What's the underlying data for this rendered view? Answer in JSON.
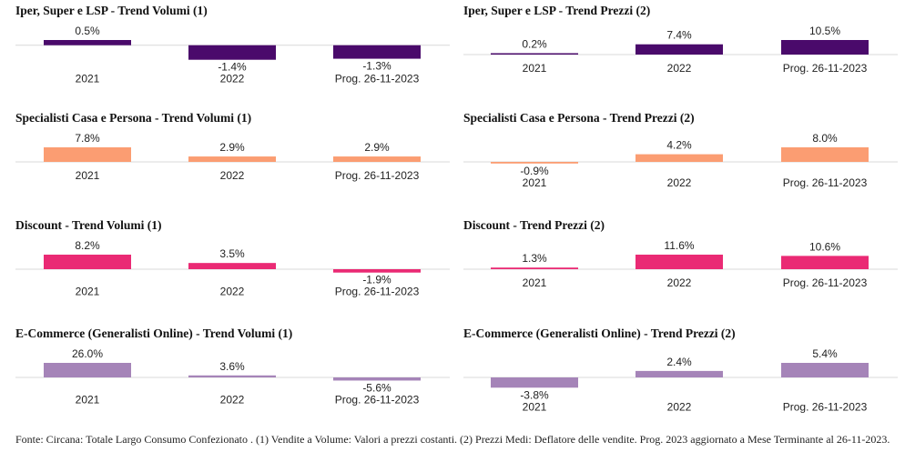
{
  "chart_data": [
    {
      "type": "bar",
      "title": "Iper, Super e LSP - Trend Volumi (1)",
      "categories": [
        "2021",
        "2022",
        "Prog. 26-11-2023"
      ],
      "values": [
        0.5,
        -1.4,
        -1.3
      ],
      "value_labels": [
        "0.5%",
        "-1.4%",
        "-1.3%"
      ],
      "color": "#4a0a6b"
    },
    {
      "type": "bar",
      "title": "Iper, Super e LSP - Trend Prezzi (2)",
      "categories": [
        "2021",
        "2022",
        "Prog. 26-11-2023"
      ],
      "values": [
        0.2,
        7.4,
        10.5
      ],
      "value_labels": [
        "0.2%",
        "7.4%",
        "10.5%"
      ],
      "color": "#4a0a6b"
    },
    {
      "type": "bar",
      "title": "Specialisti Casa e Persona - Trend Volumi (1)",
      "categories": [
        "2021",
        "2022",
        "Prog. 26-11-2023"
      ],
      "values": [
        7.8,
        2.9,
        2.9
      ],
      "value_labels": [
        "7.8%",
        "2.9%",
        "2.9%"
      ],
      "color": "#fb9d72"
    },
    {
      "type": "bar",
      "title": "Specialisti Casa e Persona - Trend Prezzi (2)",
      "categories": [
        "2021",
        "2022",
        "Prog. 26-11-2023"
      ],
      "values": [
        -0.9,
        4.2,
        8.0
      ],
      "value_labels": [
        "-0.9%",
        "4.2%",
        "8.0%"
      ],
      "color": "#fb9d72"
    },
    {
      "type": "bar",
      "title": "Discount - Trend Volumi (1)",
      "categories": [
        "2021",
        "2022",
        "Prog. 26-11-2023"
      ],
      "values": [
        8.2,
        3.5,
        -1.9
      ],
      "value_labels": [
        "8.2%",
        "3.5%",
        "-1.9%"
      ],
      "color": "#ea2a74"
    },
    {
      "type": "bar",
      "title": "Discount - Trend Prezzi (2)",
      "categories": [
        "2021",
        "2022",
        "Prog. 26-11-2023"
      ],
      "values": [
        1.3,
        11.6,
        10.6
      ],
      "value_labels": [
        "1.3%",
        "11.6%",
        "10.6%"
      ],
      "color": "#ea2a74"
    },
    {
      "type": "bar",
      "title": "E-Commerce (Generalisti Online) - Trend Volumi (1)",
      "categories": [
        "2021",
        "2022",
        "Prog. 26-11-2023"
      ],
      "values": [
        26.0,
        3.6,
        -5.6
      ],
      "value_labels": [
        "26.0%",
        "3.6%",
        "-5.6%"
      ],
      "color": "#a584b8"
    },
    {
      "type": "bar",
      "title": "E-Commerce (Generalisti Online) - Trend Prezzi (2)",
      "categories": [
        "2021",
        "2022",
        "Prog. 26-11-2023"
      ],
      "values": [
        -3.8,
        2.4,
        5.4
      ],
      "value_labels": [
        "-3.8%",
        "2.4%",
        "5.4%"
      ],
      "color": "#a584b8"
    }
  ],
  "footer": "Fonte: Circana: Totale Largo Consumo Confezionato . (1) Vendite a Volume: Valori a prezzi costanti. (2) Prezzi Medi: Deflatore delle vendite. Prog. 2023 aggiornato a Mese Terminante al 26-11-2023."
}
